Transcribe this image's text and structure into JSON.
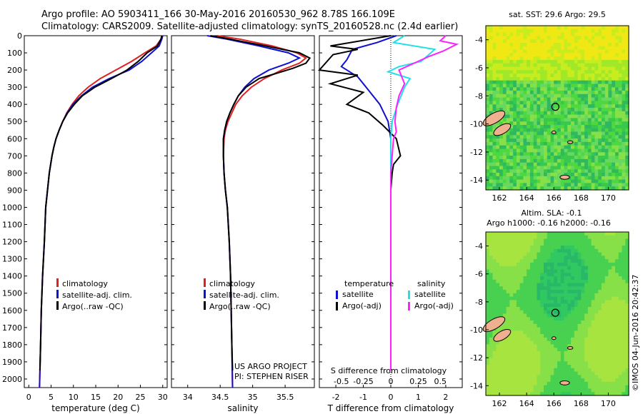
{
  "header": {
    "line1": "Argo profile: AO 5903411_166 30-May-2016 20160530_962 8.78S 166.109E",
    "line2": "Climatology: CARS2009. Satellite-adjusted climatology: synTS_20160528.nc (2.4d earlier)"
  },
  "footer": {
    "stamp": "©IMOS 04-Jun-2016 20:42:37",
    "project_line1": "US ARGO PROJECT",
    "project_line2": "PI: STEPHEN RISER"
  },
  "colors": {
    "climatology": "#e02020",
    "satellite": "#1010d0",
    "argo": "#000000",
    "satellite_sal": "#20e0e8",
    "argo_sal": "#ff20ff"
  },
  "chart_data": [
    {
      "type": "line",
      "id": "temperature",
      "xlabel": "temperature (deg C)",
      "xlim": [
        -1,
        31
      ],
      "xticks": [
        0,
        5,
        10,
        15,
        20,
        25,
        30
      ],
      "ylim": [
        2050,
        0
      ],
      "yticks": [
        0,
        100,
        200,
        300,
        400,
        500,
        600,
        700,
        800,
        900,
        1000,
        1100,
        1200,
        1300,
        1400,
        1500,
        1600,
        1700,
        1800,
        1900,
        2000
      ],
      "legend": [
        "climatology",
        "satellite-adj. clim.",
        "Argo(..raw -QC)"
      ],
      "series": [
        {
          "name": "climatology",
          "x": [
            29.8,
            29.6,
            28.5,
            26,
            23,
            19.5,
            16,
            13.3,
            11.2,
            9.7,
            8.5,
            7.6,
            6.8,
            6.1,
            5.6,
            5.2,
            4.6,
            4.2,
            3.8,
            3.5,
            3.1,
            2.8,
            2.65,
            2.5,
            2.4
          ],
          "y": [
            0,
            20,
            60,
            100,
            150,
            200,
            250,
            300,
            350,
            400,
            450,
            500,
            550,
            600,
            650,
            700,
            800,
            900,
            1000,
            1200,
            1400,
            1600,
            1800,
            1950,
            2050
          ]
        },
        {
          "name": "satellite-adj. clim.",
          "x": [
            30,
            29.8,
            29.2,
            27.5,
            25.3,
            22.5,
            18,
            14.3,
            11.8,
            9.9,
            8.6,
            7.6,
            6.8,
            6.1,
            5.6,
            5.2,
            4.6,
            4.2,
            3.8,
            3.5,
            3.1,
            2.8,
            2.65,
            2.5,
            2.4
          ],
          "y": [
            0,
            20,
            60,
            100,
            150,
            200,
            250,
            300,
            350,
            400,
            450,
            500,
            550,
            600,
            650,
            700,
            800,
            900,
            1000,
            1200,
            1400,
            1600,
            1800,
            1950,
            2050
          ]
        },
        {
          "name": "Argo(..raw -QC)",
          "x": [
            29.8,
            29.6,
            28.8,
            26.5,
            24.5,
            22,
            18.5,
            14.8,
            12,
            10.2,
            8.7,
            7.6,
            6.8,
            6.1,
            5.6,
            5.2,
            4.6,
            4.2,
            3.8,
            3.5,
            3.1,
            2.8,
            2.65,
            2.5
          ],
          "y": [
            0,
            20,
            60,
            100,
            150,
            200,
            250,
            300,
            350,
            400,
            450,
            500,
            550,
            600,
            650,
            700,
            800,
            900,
            1000,
            1200,
            1400,
            1600,
            1800,
            1950
          ]
        }
      ]
    },
    {
      "type": "line",
      "id": "salinity",
      "xlabel": "salinity",
      "xlim": [
        33.75,
        35.95
      ],
      "xticks": [
        34,
        34.5,
        35,
        35.5
      ],
      "ylim": [
        2050,
        0
      ],
      "legend": [
        "climatology",
        "satellite-adj. clim.",
        "Argo(..raw -QC)"
      ],
      "series": [
        {
          "name": "climatology",
          "x": [
            34.45,
            34.8,
            35.3,
            35.68,
            35.82,
            35.72,
            35.45,
            35.18,
            34.98,
            34.84,
            34.74,
            34.68,
            34.62,
            34.58,
            34.56,
            34.55,
            34.56,
            34.58,
            34.61,
            34.64,
            34.66,
            34.67,
            34.68,
            34.69
          ],
          "y": [
            0,
            20,
            60,
            100,
            130,
            160,
            200,
            250,
            300,
            350,
            400,
            450,
            500,
            550,
            600,
            700,
            800,
            900,
            1000,
            1200,
            1400,
            1600,
            1800,
            2050
          ]
        },
        {
          "name": "satellite-adj. clim.",
          "x": [
            34.3,
            34.6,
            35.1,
            35.55,
            35.72,
            35.55,
            35.25,
            35.02,
            34.88,
            34.78,
            34.71,
            34.65,
            34.6,
            34.57,
            34.55,
            34.55,
            34.56,
            34.58,
            34.61,
            34.64,
            34.66,
            34.67,
            34.68,
            34.69
          ],
          "y": [
            0,
            20,
            60,
            100,
            130,
            160,
            200,
            250,
            300,
            350,
            400,
            450,
            500,
            550,
            600,
            700,
            800,
            900,
            1000,
            1200,
            1400,
            1600,
            1800,
            2050
          ]
        },
        {
          "name": "Argo(..raw -QC)",
          "x": [
            34.35,
            34.65,
            35.2,
            35.72,
            35.88,
            35.82,
            35.62,
            35.1,
            34.9,
            34.78,
            34.71,
            34.65,
            34.6,
            34.57,
            34.55,
            34.55,
            34.56,
            34.58,
            34.61,
            34.64,
            34.66,
            34.67,
            34.68,
            34.69
          ],
          "y": [
            0,
            20,
            60,
            100,
            130,
            160,
            190,
            250,
            300,
            350,
            400,
            450,
            500,
            550,
            600,
            700,
            800,
            900,
            1000,
            1200,
            1400,
            1600,
            1800,
            1950
          ]
        }
      ]
    },
    {
      "type": "line",
      "id": "difference",
      "xlabel": "T difference from climatology",
      "xlabel2": "S difference from climatology",
      "xlim": [
        -2.6,
        2.6
      ],
      "xticks": [
        -2,
        -1,
        0,
        1,
        2
      ],
      "xticks2_labels": [
        "-0.5",
        "-0.25",
        "0",
        "0.25",
        "0.5"
      ],
      "ylim": [
        2050,
        0
      ],
      "legend_headers": [
        "temperature",
        "salinity"
      ],
      "legend": [
        "satellite",
        "Argo(-adj)",
        "satellite",
        "Argo(-adj)"
      ],
      "series": [
        {
          "name": "satellite",
          "x": [
            0.2,
            -0.5,
            -1.4,
            -1.6,
            -1.8,
            -1.2,
            -0.9,
            -0.4,
            -0.1,
            0,
            0,
            0,
            0,
            0,
            0,
            0,
            0
          ],
          "y": [
            0,
            40,
            80,
            140,
            180,
            240,
            300,
            400,
            500,
            600,
            700,
            800,
            1000,
            1200,
            1500,
            1800,
            1950
          ]
        },
        {
          "name": "Argo(-adj)",
          "x": [
            0.0,
            -2.2,
            -1.2,
            -2.1,
            -2.6,
            -1.2,
            -2.2,
            -1.0,
            -1.6,
            -0.8,
            -0.3,
            0.2,
            0.35,
            0.1,
            0.05,
            0,
            0,
            0,
            0,
            0
          ],
          "y": [
            0,
            60,
            80,
            110,
            200,
            230,
            280,
            330,
            400,
            450,
            520,
            600,
            700,
            750,
            800,
            900,
            1200,
            1500,
            1800,
            1950
          ]
        },
        {
          "name": "satellite",
          "x": [
            0.5,
            0.1,
            1.6,
            1.1,
            0.3,
            -0.1,
            0.7,
            0.5,
            0.25,
            0.05,
            0,
            0,
            0,
            0,
            0,
            0
          ],
          "y": [
            0,
            40,
            80,
            150,
            180,
            210,
            250,
            300,
            400,
            500,
            600,
            800,
            1000,
            1300,
            1600,
            1950
          ]
        },
        {
          "name": "Argo(-adj)",
          "x": [
            2.0,
            1.8,
            2.4,
            1.9,
            1.4,
            0.3,
            0.5,
            0.3,
            0.2,
            0.15,
            0.2,
            0.1,
            0.05,
            0,
            0,
            0,
            0
          ],
          "y": [
            0,
            30,
            50,
            90,
            120,
            200,
            280,
            350,
            420,
            500,
            560,
            600,
            700,
            800,
            1200,
            1600,
            1950
          ]
        }
      ]
    },
    {
      "type": "heatmap",
      "id": "sst",
      "title": "sat. SST: 29.6 Argo: 29.5",
      "xlim": [
        161,
        171.5
      ],
      "ylim": [
        -14.7,
        -3.0
      ],
      "xticks": [
        162,
        164,
        166,
        168,
        170
      ],
      "yticks": [
        -4,
        -6,
        -8,
        -10,
        -12,
        -14
      ],
      "argo_position": [
        166.109,
        -8.78
      ],
      "colors": [
        "#f0e814",
        "#c8ec1e",
        "#a0e828",
        "#4ed840",
        "#38c84c",
        "#30b860",
        "#68d860",
        "#88e048"
      ]
    },
    {
      "type": "heatmap",
      "id": "sla",
      "title_line1": "Altim. SLA: -0.1",
      "title_line2": "Argo h1000: -0.16 h2000: -0.16",
      "xlim": [
        161,
        171.5
      ],
      "ylim": [
        -14.7,
        -3.0
      ],
      "xticks": [
        162,
        164,
        166,
        168,
        170
      ],
      "yticks": [
        -4,
        -6,
        -8,
        -10,
        -12,
        -14
      ],
      "argo_position": [
        166.109,
        -8.78
      ],
      "colors": [
        "#30c860",
        "#48d050",
        "#60d848",
        "#88e048",
        "#a8e440",
        "#28b868"
      ]
    }
  ]
}
